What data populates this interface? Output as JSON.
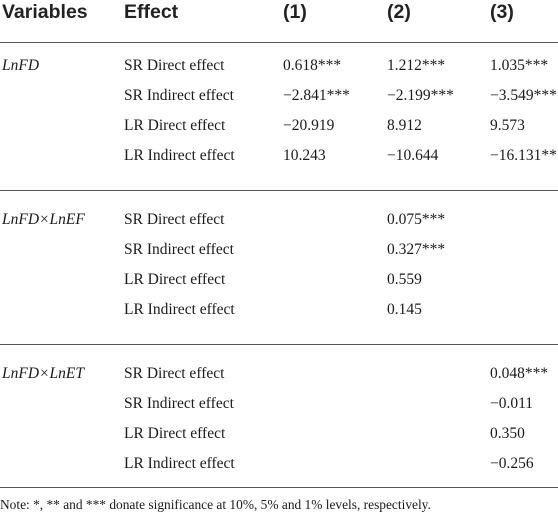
{
  "headers": [
    "Variables",
    "Effect",
    "(1)",
    "(2)",
    "(3)"
  ],
  "groups": [
    {
      "variable": "LnFD",
      "rows": [
        {
          "effect": "SR Direct effect",
          "c1": "0.618***",
          "c2": "1.212***",
          "c3": "1.035***"
        },
        {
          "effect": "SR Indirect effect",
          "c1": "−2.841***",
          "c2": "−2.199***",
          "c3": "−3.549***"
        },
        {
          "effect": "LR Direct effect",
          "c1": "−20.919",
          "c2": "8.912",
          "c3": "9.573"
        },
        {
          "effect": "LR Indirect effect",
          "c1": "10.243",
          "c2": "−10.644",
          "c3": "−16.131**"
        }
      ]
    },
    {
      "variable": "LnFD×LnEF",
      "rows": [
        {
          "effect": "SR Direct effect",
          "c1": "",
          "c2": "0.075***",
          "c3": ""
        },
        {
          "effect": "SR Indirect effect",
          "c1": "",
          "c2": "0.327***",
          "c3": ""
        },
        {
          "effect": "LR Direct effect",
          "c1": "",
          "c2": "0.559",
          "c3": ""
        },
        {
          "effect": "LR Indirect effect",
          "c1": "",
          "c2": "0.145",
          "c3": ""
        }
      ]
    },
    {
      "variable": "LnFD×LnET",
      "rows": [
        {
          "effect": "SR Direct effect",
          "c1": "",
          "c2": "",
          "c3": "0.048***"
        },
        {
          "effect": "SR Indirect effect",
          "c1": "",
          "c2": "",
          "c3": "−0.011"
        },
        {
          "effect": "LR Direct effect",
          "c1": "",
          "c2": "",
          "c3": "0.350"
        },
        {
          "effect": "LR Indirect effect",
          "c1": "",
          "c2": "",
          "c3": "−0.256"
        }
      ]
    }
  ],
  "note": "Note: *, ** and *** donate significance at 10%, 5% and 1% levels, respectively."
}
